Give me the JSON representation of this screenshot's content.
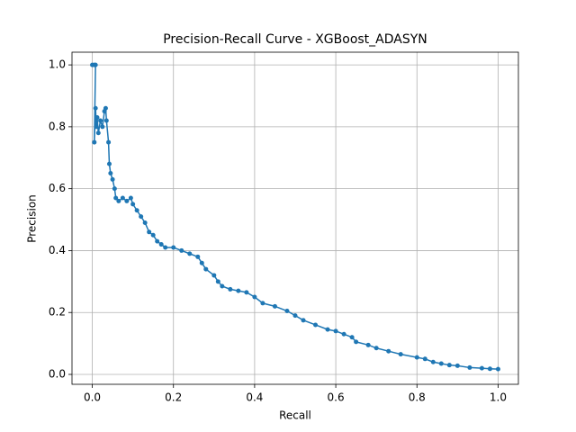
{
  "chart_data": {
    "type": "line",
    "title": "Precision-Recall Curve - XGBoost_ADASYN",
    "xlabel": "Recall",
    "ylabel": "Precision",
    "x": [
      0,
      0.005,
      0.008,
      0.005,
      0.008,
      0.01,
      0.012,
      0.015,
      0.02,
      0.025,
      0.03,
      0.033,
      0.035,
      0.04,
      0.042,
      0.045,
      0.05,
      0.055,
      0.058,
      0.065,
      0.075,
      0.085,
      0.095,
      0.1,
      0.11,
      0.12,
      0.13,
      0.14,
      0.15,
      0.16,
      0.17,
      0.18,
      0.2,
      0.22,
      0.24,
      0.26,
      0.27,
      0.28,
      0.3,
      0.31,
      0.32,
      0.34,
      0.36,
      0.38,
      0.4,
      0.42,
      0.45,
      0.48,
      0.5,
      0.52,
      0.55,
      0.58,
      0.6,
      0.62,
      0.64,
      0.65,
      0.68,
      0.7,
      0.73,
      0.76,
      0.8,
      0.82,
      0.84,
      0.86,
      0.88,
      0.9,
      0.93,
      0.96,
      0.98,
      1.0
    ],
    "series": [
      {
        "color": "#1f77b4",
        "values": [
          1,
          1,
          1,
          0.75,
          0.86,
          0.8,
          0.83,
          0.78,
          0.82,
          0.8,
          0.85,
          0.86,
          0.82,
          0.75,
          0.68,
          0.65,
          0.63,
          0.6,
          0.57,
          0.56,
          0.57,
          0.56,
          0.57,
          0.55,
          0.53,
          0.51,
          0.49,
          0.46,
          0.45,
          0.43,
          0.42,
          0.41,
          0.41,
          0.4,
          0.39,
          0.38,
          0.36,
          0.34,
          0.32,
          0.3,
          0.285,
          0.275,
          0.27,
          0.265,
          0.25,
          0.23,
          0.22,
          0.205,
          0.19,
          0.175,
          0.16,
          0.145,
          0.14,
          0.13,
          0.12,
          0.105,
          0.095,
          0.085,
          0.075,
          0.065,
          0.055,
          0.05,
          0.04,
          0.035,
          0.03,
          0.028,
          0.022,
          0.02,
          0.018,
          0.017
        ]
      }
    ],
    "xlim": [
      -0.05,
      1.05
    ],
    "ylim": [
      -0.032,
      1.041
    ],
    "xticks": [
      {
        "value": 0,
        "label": "0.0"
      },
      0.2,
      0.4,
      0.6,
      0.8,
      {
        "value": 1,
        "label": "1.0"
      }
    ],
    "yticks": [
      {
        "value": 0,
        "label": "0.0"
      },
      0.2,
      0.4,
      0.6,
      0.8,
      {
        "value": 1,
        "label": "1.0"
      }
    ],
    "grid": true
  }
}
